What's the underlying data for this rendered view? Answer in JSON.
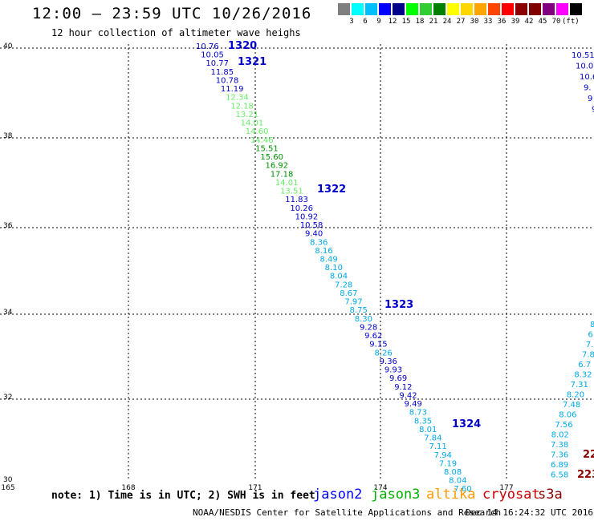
{
  "title": "12:00 – 23:59 UTC 10/26/2016",
  "subtitle": "12 hour collection of altimeter wave heighs",
  "colorbar": {
    "colors": [
      "#7f7f7f",
      "#00ffff",
      "#00bfff",
      "#0000ff",
      "#00008b",
      "#00ff00",
      "#32cd32",
      "#008000",
      "#ffff00",
      "#ffd700",
      "#ffa500",
      "#ff4500",
      "#ff0000",
      "#8b0000",
      "#800000",
      "#800080",
      "#ff00ff",
      "#000000"
    ],
    "labels": [
      "3",
      "6",
      "9",
      "12",
      "15",
      "18",
      "21",
      "24",
      "27",
      "30",
      "33",
      "36",
      "39",
      "42",
      "45",
      "70",
      "(ft)"
    ]
  },
  "axes": {
    "lon_labels": [
      "165",
      "168",
      "171",
      "174",
      "177"
    ],
    "lat_labels": [
      "40",
      "38",
      "36",
      "34",
      "32",
      "30"
    ]
  },
  "tracks": [
    {
      "label": "1320"
    },
    {
      "label": "1321"
    },
    {
      "label": "1322"
    },
    {
      "label": "1323"
    },
    {
      "label": "1324"
    }
  ],
  "swh_main": [
    "10.76",
    "10.05",
    "10.77",
    "11.85",
    "10.78",
    "11.19",
    "12.34",
    "12.18",
    "13.21",
    "14.01",
    "14.60",
    "14.46",
    "15.51",
    "15.60",
    "16.92",
    "17.18",
    "14.01",
    "13.51",
    "11.83",
    "10.26",
    "10.92",
    "10.58",
    "9.40",
    "8.36",
    "8.16",
    "8.49",
    "8.10",
    "8.04",
    "7.28",
    "8.67",
    "7.97",
    "8.75",
    "8.30",
    "9.28",
    "9.62",
    "9.15",
    "8.26",
    "9.36",
    "9.93",
    "9.69",
    "9.12",
    "9.42",
    "9.49",
    "8.73",
    "8.35",
    "8.01",
    "7.84",
    "7.11",
    "7.94",
    "7.19",
    "8.08",
    "8.04",
    "7.60"
  ],
  "swh_right_top": [
    "10.51",
    "10.0",
    "10.6",
    "9.",
    "9",
    "9."
  ],
  "swh_right_bottom": [
    "8",
    "6",
    "7.",
    "7.8",
    "6.7",
    "8.32",
    "7.31",
    "8.20",
    "7.48",
    "8.06",
    "7.56",
    "8.02",
    "7.38",
    "7.36",
    "6.89",
    "6.58"
  ],
  "swh_cryosat": [
    "22",
    "223"
  ],
  "note": "note: 1) Time is in UTC; 2) SWH is in feet",
  "legend": {
    "jason2": "jason2",
    "jason3": "jason3",
    "altika": "altika",
    "cryosat": "cryosat",
    "s3a": "s3a"
  },
  "footer": "NOAA/NESDIS Center for Satellite Applications and Research",
  "footer_date": "Dec 14 16:24:32 UTC 2016"
}
